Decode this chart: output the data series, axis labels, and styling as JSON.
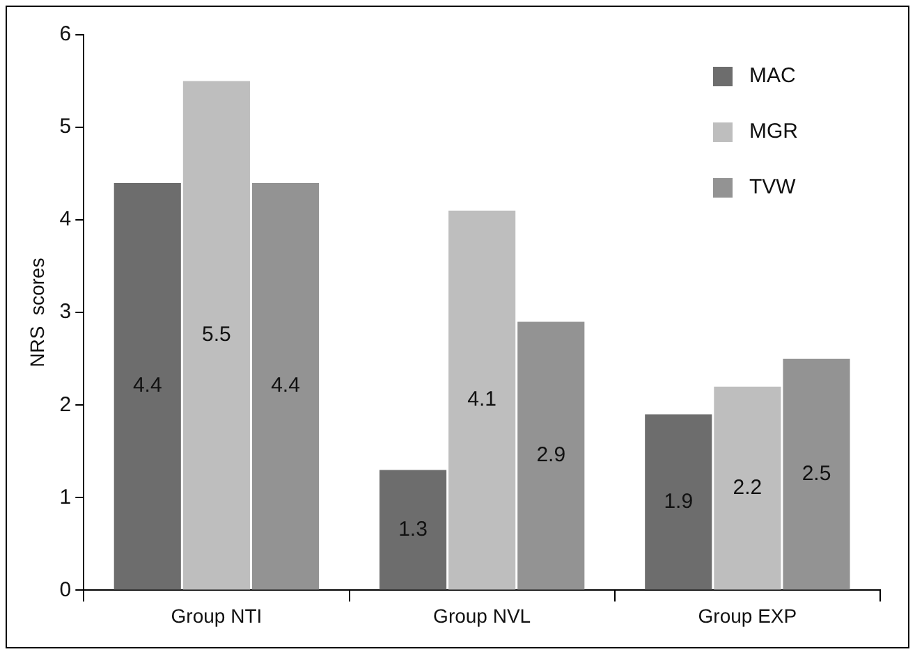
{
  "chart_data": {
    "type": "bar",
    "ylabel": "NRS  scores",
    "categories": [
      "Group NTI",
      "Group NVL",
      "Group EXP"
    ],
    "series": [
      {
        "name": "MAC",
        "color": "#6d6d6d",
        "values": [
          4.4,
          1.3,
          1.9
        ]
      },
      {
        "name": "MGR",
        "color": "#bebebe",
        "values": [
          5.5,
          4.1,
          2.2
        ]
      },
      {
        "name": "TVW",
        "color": "#939393",
        "values": [
          4.4,
          2.9,
          2.5
        ]
      }
    ],
    "ylim": [
      0,
      6
    ],
    "yticks": [
      0,
      1,
      2,
      3,
      4,
      5,
      6
    ],
    "grid": false,
    "legend": "top right",
    "data_labels": true
  }
}
